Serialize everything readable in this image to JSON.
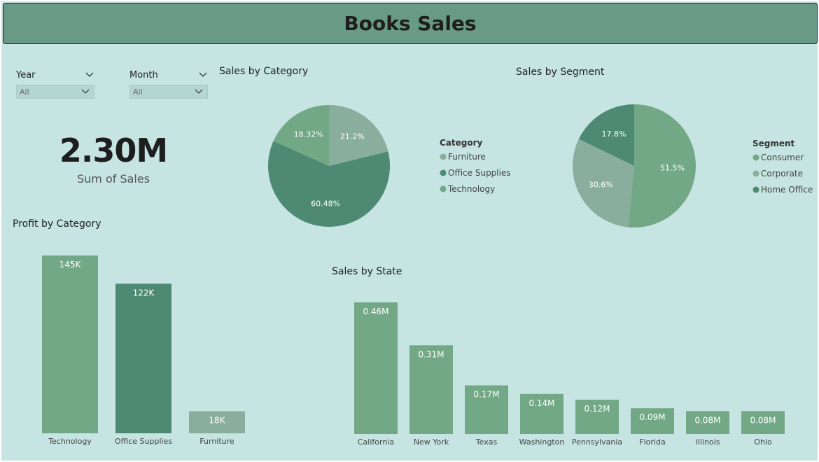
{
  "header": {
    "title": "Books Sales"
  },
  "slicers": [
    {
      "title": "Year",
      "value": "All"
    },
    {
      "title": "Month",
      "value": "All"
    }
  ],
  "kpi": {
    "value": "2.30M",
    "label": "Sum of Sales"
  },
  "colors": {
    "background": "#c5e4e2",
    "header": "#689a85",
    "light_green": "#72a886",
    "dark_green": "#4e8a73",
    "grey_green": "#8aae9e"
  },
  "chart_data": [
    {
      "id": "sales-by-category",
      "type": "pie",
      "title": "Sales by Category",
      "legend_title": "Category",
      "legend_position": "right",
      "slices": [
        {
          "label": "Furniture",
          "value": 21.2,
          "display": "21.2%",
          "color": "#8aae9e"
        },
        {
          "label": "Office Supplies",
          "value": 60.48,
          "display": "60.48%",
          "color": "#4e8a73"
        },
        {
          "label": "Technology",
          "value": 18.32,
          "display": "18.32%",
          "color": "#72a886"
        }
      ]
    },
    {
      "id": "sales-by-segment",
      "type": "pie",
      "title": "Sales by Segment",
      "legend_title": "Segment",
      "legend_position": "right",
      "slices": [
        {
          "label": "Consumer",
          "value": 51.5,
          "display": "51.5%",
          "color": "#72a886"
        },
        {
          "label": "Corporate",
          "value": 30.6,
          "display": "30.6%",
          "color": "#8aae9e"
        },
        {
          "label": "Home Office",
          "value": 17.8,
          "display": "17.8%",
          "color": "#4e8a73"
        }
      ]
    },
    {
      "id": "profit-by-category",
      "type": "bar",
      "title": "Profit by Category",
      "categories": [
        "Technology",
        "Office Supplies",
        "Furniture"
      ],
      "values": [
        145,
        122,
        18
      ],
      "data_labels": [
        "145K",
        "122K",
        "18K"
      ],
      "colors": [
        "#72a886",
        "#4e8a73",
        "#8aae9e"
      ],
      "ylim": [
        0,
        145
      ]
    },
    {
      "id": "sales-by-state",
      "type": "bar",
      "title": "Sales by State",
      "categories": [
        "California",
        "New York",
        "Texas",
        "Washington",
        "Pennsylvania",
        "Florida",
        "Illinois",
        "Ohio"
      ],
      "values": [
        0.46,
        0.31,
        0.17,
        0.14,
        0.12,
        0.09,
        0.08,
        0.08
      ],
      "data_labels": [
        "0.46M",
        "0.31M",
        "0.17M",
        "0.14M",
        "0.12M",
        "0.09M",
        "0.08M",
        "0.08M"
      ],
      "color": "#72a886",
      "ylim": [
        0,
        0.46
      ]
    }
  ]
}
